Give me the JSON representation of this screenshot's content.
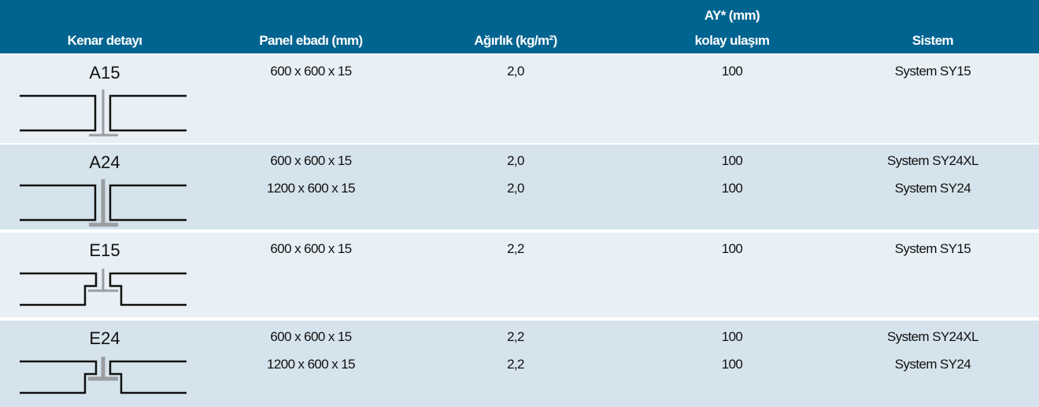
{
  "header": [
    "Kenar detayı",
    "Panel ebadı (mm)",
    "Ağırlık (kg/m²)",
    [
      "AY* (mm)",
      "kolay ulaşım"
    ],
    "Sistem"
  ],
  "rows": [
    {
      "code": "A15",
      "lines": [
        [
          "600 x 600 x 15",
          "2,0",
          "100",
          "System SY15"
        ]
      ]
    },
    {
      "code": "A24",
      "lines": [
        [
          "600 x 600 x 15",
          "2,0",
          "100",
          "System SY24XL"
        ],
        [
          "1200 x 600 x 15",
          "2,0",
          "100",
          "System SY24"
        ]
      ]
    },
    {
      "code": "E15",
      "lines": [
        [
          "600 x 600 x 15",
          "2,2",
          "100",
          "System SY15"
        ]
      ]
    },
    {
      "code": "E24",
      "lines": [
        [
          "600 x 600 x 15",
          "2,2",
          "100",
          "System SY24XL"
        ],
        [
          "1200 x 600 x 15",
          "2,2",
          "100",
          "System SY24"
        ]
      ]
    }
  ]
}
